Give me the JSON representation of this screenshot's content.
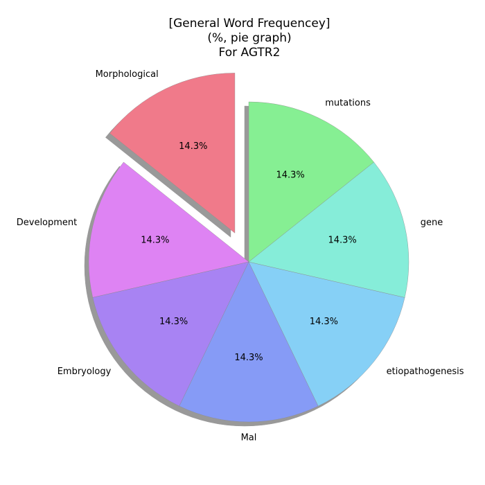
{
  "chart_data": {
    "type": "pie",
    "title": [
      "[General Word Frequencey]",
      "(%, pie graph)",
      "For AGTR2"
    ],
    "autopct_format": "%.1f%%",
    "start_angle_deg": 90,
    "counterclockwise": true,
    "shadow": true,
    "slices": [
      {
        "label": "Morphological",
        "value": 14.3,
        "color": "#f07a8a",
        "exploded": true
      },
      {
        "label": "Development",
        "value": 14.3,
        "color": "#de83f3",
        "exploded": false
      },
      {
        "label": "Embryology",
        "value": 14.3,
        "color": "#a883f3",
        "exploded": false
      },
      {
        "label": "Mal",
        "value": 14.3,
        "color": "#869bf6",
        "exploded": false
      },
      {
        "label": "etiopathogenesis",
        "value": 14.3,
        "color": "#86d0f6",
        "exploded": false
      },
      {
        "label": "gene",
        "value": 14.3,
        "color": "#86edd9",
        "exploded": false
      },
      {
        "label": "mutations",
        "value": 14.3,
        "color": "#86ef93",
        "exploded": false
      }
    ]
  }
}
